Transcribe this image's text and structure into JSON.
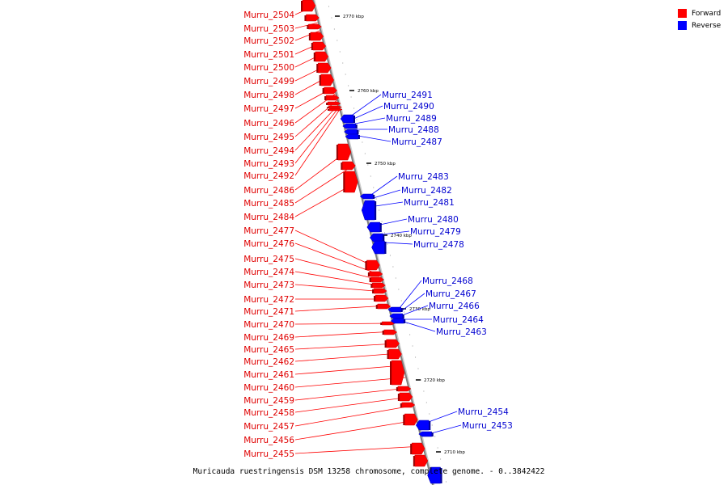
{
  "legend": {
    "forward": {
      "label": "Forward",
      "color": "#ff0000"
    },
    "reverse": {
      "label": "Reverse",
      "color": "#0000ff"
    }
  },
  "caption": "Muricauda ruestringensis DSM 13258 chromosome, complete genome. - 0..3842422",
  "scale_labels": [
    "2770 kbp",
    "2760 kbp",
    "2750 kbp",
    "2740 kbp",
    "2730 kbp",
    "2720 kbp",
    "2710 kbp"
  ],
  "genes_forward": [
    "Murru_2504",
    "Murru_2503",
    "Murru_2502",
    "Murru_2501",
    "Murru_2500",
    "Murru_2499",
    "Murru_2498",
    "Murru_2497",
    "Murru_2496",
    "Murru_2495",
    "Murru_2494",
    "Murru_2493",
    "Murru_2492",
    "Murru_2486",
    "Murru_2485",
    "Murru_2484",
    "Murru_2477",
    "Murru_2476",
    "Murru_2475",
    "Murru_2474",
    "Murru_2473",
    "Murru_2472",
    "Murru_2471",
    "Murru_2470",
    "Murru_2469",
    "Murru_2465",
    "Murru_2462",
    "Murru_2461",
    "Murru_2460",
    "Murru_2459",
    "Murru_2458",
    "Murru_2457",
    "Murru_2456",
    "Murru_2455"
  ],
  "genes_reverse": [
    "Murru_2491",
    "Murru_2490",
    "Murru_2489",
    "Murru_2488",
    "Murru_2487",
    "Murru_2483",
    "Murru_2482",
    "Murru_2481",
    "Murru_2480",
    "Murru_2479",
    "Murru_2478",
    "Murru_2468",
    "Murru_2467",
    "Murru_2466",
    "Murru_2464",
    "Murru_2463",
    "Murru_2454",
    "Murru_2453"
  ]
}
